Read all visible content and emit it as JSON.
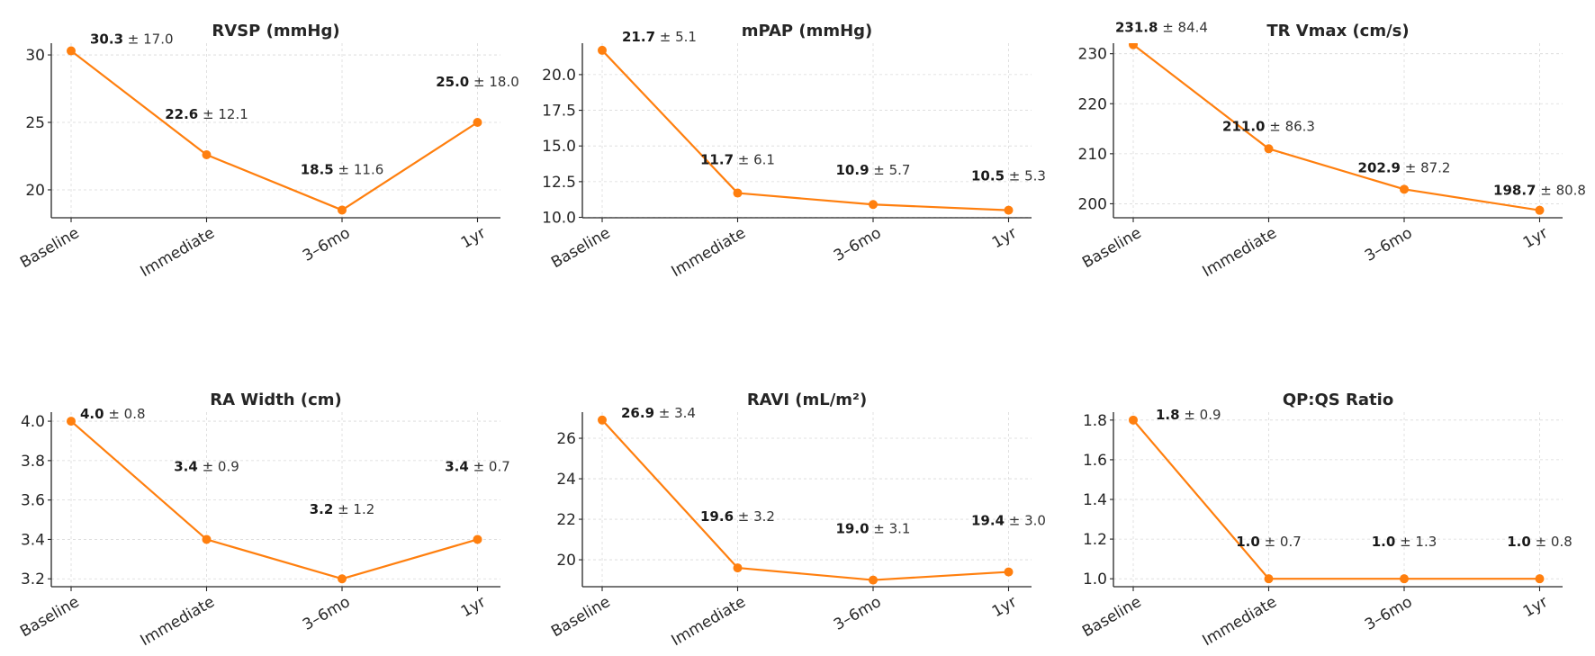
{
  "colors": {
    "series": "#ff7f0e"
  },
  "chart_data": [
    {
      "type": "line",
      "title": "RVSP (mmHg)",
      "categories": [
        "Baseline",
        "Immediate",
        "3–6mo",
        "1yr"
      ],
      "values": [
        30.3,
        22.6,
        18.5,
        25.0
      ],
      "sd": [
        17.0,
        12.1,
        11.6,
        18.0
      ],
      "annotations": [
        "30.3 ± 17.0",
        "22.6 ± 12.1",
        "18.5 ± 11.6",
        "25.0 ± 18.0"
      ],
      "yticks": [
        20,
        25,
        30
      ],
      "ytick_labels": [
        "20",
        "25",
        "30"
      ],
      "ylim": [
        17.93,
        30.87
      ],
      "xlabel": "",
      "ylabel": "",
      "grid": true,
      "legend": "none"
    },
    {
      "type": "line",
      "title": "mPAP (mmHg)",
      "categories": [
        "Baseline",
        "Immediate",
        "3–6mo",
        "1yr"
      ],
      "values": [
        21.7,
        11.7,
        10.9,
        10.5
      ],
      "sd": [
        5.1,
        6.1,
        5.7,
        5.3
      ],
      "annotations": [
        "21.7 ± 5.1",
        "11.7 ± 6.1",
        "10.9 ± 5.7",
        "10.5 ± 5.3"
      ],
      "yticks": [
        10.0,
        12.5,
        15.0,
        17.5,
        20.0
      ],
      "ytick_labels": [
        "10.0",
        "12.5",
        "15.0",
        "17.5",
        "20.0"
      ],
      "ylim": [
        9.97,
        22.2
      ],
      "xlabel": "",
      "ylabel": "",
      "grid": true,
      "legend": "none"
    },
    {
      "type": "line",
      "title": "TR Vmax (cm/s)",
      "categories": [
        "Baseline",
        "Immediate",
        "3–6mo",
        "1yr"
      ],
      "values": [
        231.8,
        211.0,
        202.9,
        198.7
      ],
      "sd": [
        84.4,
        86.3,
        87.2,
        80.8
      ],
      "annotations": [
        "231.8 ± 84.4",
        "211.0 ± 86.3",
        "202.9 ± 87.2",
        "198.7 ± 80.8"
      ],
      "yticks": [
        200,
        210,
        220,
        230
      ],
      "ytick_labels": [
        "200",
        "210",
        "220",
        "230"
      ],
      "ylim": [
        197.2,
        232.1
      ],
      "xlabel": "",
      "ylabel": "",
      "grid": true,
      "legend": "none"
    },
    {
      "type": "line",
      "title": "RA Width (cm)",
      "categories": [
        "Baseline",
        "Immediate",
        "3–6mo",
        "1yr"
      ],
      "values": [
        4.0,
        3.4,
        3.2,
        3.4
      ],
      "sd": [
        0.8,
        0.9,
        1.2,
        0.7
      ],
      "annotations": [
        "4.0 ± 0.8",
        "3.4 ± 0.9",
        "3.2 ± 1.2",
        "3.4 ± 0.7"
      ],
      "yticks": [
        3.2,
        3.4,
        3.6,
        3.8,
        4.0
      ],
      "ytick_labels": [
        "3.2",
        "3.4",
        "3.6",
        "3.8",
        "4.0"
      ],
      "ylim": [
        3.16,
        4.046
      ],
      "xlabel": "",
      "ylabel": "",
      "grid": true,
      "legend": "none"
    },
    {
      "type": "line",
      "title": "RAVI (mL/m²)",
      "categories": [
        "Baseline",
        "Immediate",
        "3–6mo",
        "1yr"
      ],
      "values": [
        26.9,
        19.6,
        19.0,
        19.4
      ],
      "sd": [
        3.4,
        3.2,
        3.1,
        3.0
      ],
      "annotations": [
        "26.9 ± 3.4",
        "19.6 ± 3.2",
        "19.0 ± 3.1",
        "19.4 ± 3.0"
      ],
      "yticks": [
        20,
        22,
        24,
        26
      ],
      "ytick_labels": [
        "20",
        "22",
        "24",
        "26"
      ],
      "ylim": [
        18.67,
        27.29
      ],
      "xlabel": "",
      "ylabel": "",
      "grid": true,
      "legend": "none"
    },
    {
      "type": "line",
      "title": "QP:QS Ratio",
      "categories": [
        "Baseline",
        "Immediate",
        "3–6mo",
        "1yr"
      ],
      "values": [
        1.8,
        1.0,
        1.0,
        1.0
      ],
      "sd": [
        0.9,
        0.7,
        1.3,
        0.8
      ],
      "annotations": [
        "1.8 ± 0.9",
        "1.0 ± 0.7",
        "1.0 ± 1.3",
        "1.0 ± 0.8"
      ],
      "yticks": [
        1.0,
        1.2,
        1.4,
        1.6,
        1.8
      ],
      "ytick_labels": [
        "1.0",
        "1.2",
        "1.4",
        "1.6",
        "1.8"
      ],
      "ylim": [
        0.96,
        1.84
      ],
      "xlabel": "",
      "ylabel": "",
      "grid": true,
      "legend": "none"
    }
  ]
}
